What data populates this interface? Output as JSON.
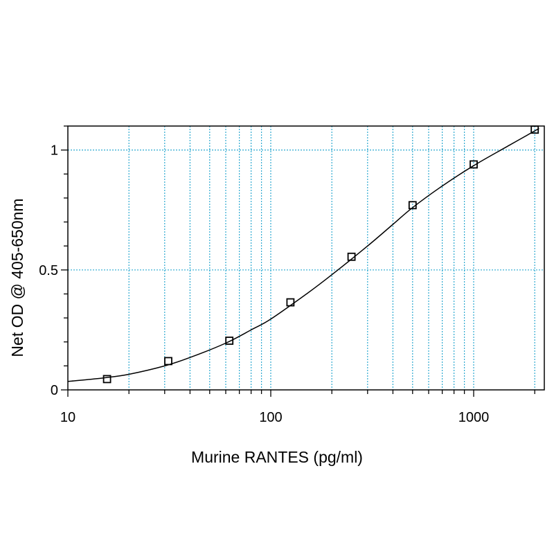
{
  "chart_data": {
    "type": "scatter",
    "title": "",
    "xlabel": "Murine RANTES (pg/ml)",
    "ylabel": "Net OD @ 405-650nm",
    "x_scale": "log",
    "xlim": [
      10,
      2100
    ],
    "ylim": [
      0,
      1.1
    ],
    "x_ticks": [
      {
        "value": 10,
        "label": "10"
      },
      {
        "value": 100,
        "label": "100"
      },
      {
        "value": 1000,
        "label": "1000"
      }
    ],
    "y_ticks": [
      {
        "value": 0,
        "label": "0"
      },
      {
        "value": 0.5,
        "label": "0.5"
      },
      {
        "value": 1,
        "label": "1"
      }
    ],
    "grid": "dotted, log-decade minor lines on x, major lines on y",
    "grid_color": "#2aa8d0",
    "series": [
      {
        "marker": "square",
        "x": [
          15.6,
          31.25,
          62.5,
          125,
          250,
          500,
          1000,
          2000
        ],
        "y": [
          0.045,
          0.12,
          0.205,
          0.365,
          0.555,
          0.77,
          0.94,
          1.085
        ]
      }
    ],
    "fit_curve": {
      "type": "4PL",
      "x": [
        10,
        15,
        20,
        30,
        40,
        60,
        80,
        100,
        150,
        200,
        300,
        400,
        500,
        700,
        1000,
        1500,
        2100
      ],
      "y": [
        0.035,
        0.05,
        0.065,
        0.1,
        0.135,
        0.195,
        0.25,
        0.295,
        0.4,
        0.48,
        0.6,
        0.69,
        0.76,
        0.85,
        0.935,
        1.02,
        1.09
      ]
    }
  }
}
